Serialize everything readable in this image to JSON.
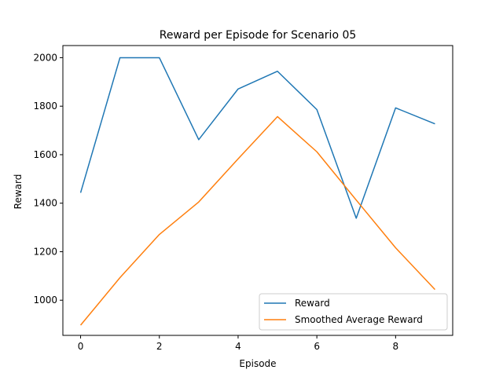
{
  "chart_data": {
    "type": "line",
    "title": "Reward per Episode for Scenario 05",
    "xlabel": "Episode",
    "ylabel": "Reward",
    "x": [
      0,
      1,
      2,
      3,
      4,
      5,
      6,
      7,
      8,
      9
    ],
    "xlim": [
      -0.45,
      9.45
    ],
    "ylim": [
      855,
      2050
    ],
    "xticks": [
      0,
      2,
      4,
      6,
      8
    ],
    "yticks": [
      1000,
      1200,
      1400,
      1600,
      1800,
      2000
    ],
    "grid": false,
    "legend_position": "lower right",
    "series": [
      {
        "name": "Reward",
        "color": "#1f77b4",
        "values": [
          1443,
          2000,
          2000,
          1662,
          1871,
          1944,
          1786,
          1338,
          1793,
          1727
        ]
      },
      {
        "name": "Smoothed Average Reward",
        "color": "#ff7f0e",
        "values": [
          897,
          1093,
          1271,
          1405,
          1583,
          1757,
          1612,
          1413,
          1216,
          1044
        ]
      }
    ]
  }
}
